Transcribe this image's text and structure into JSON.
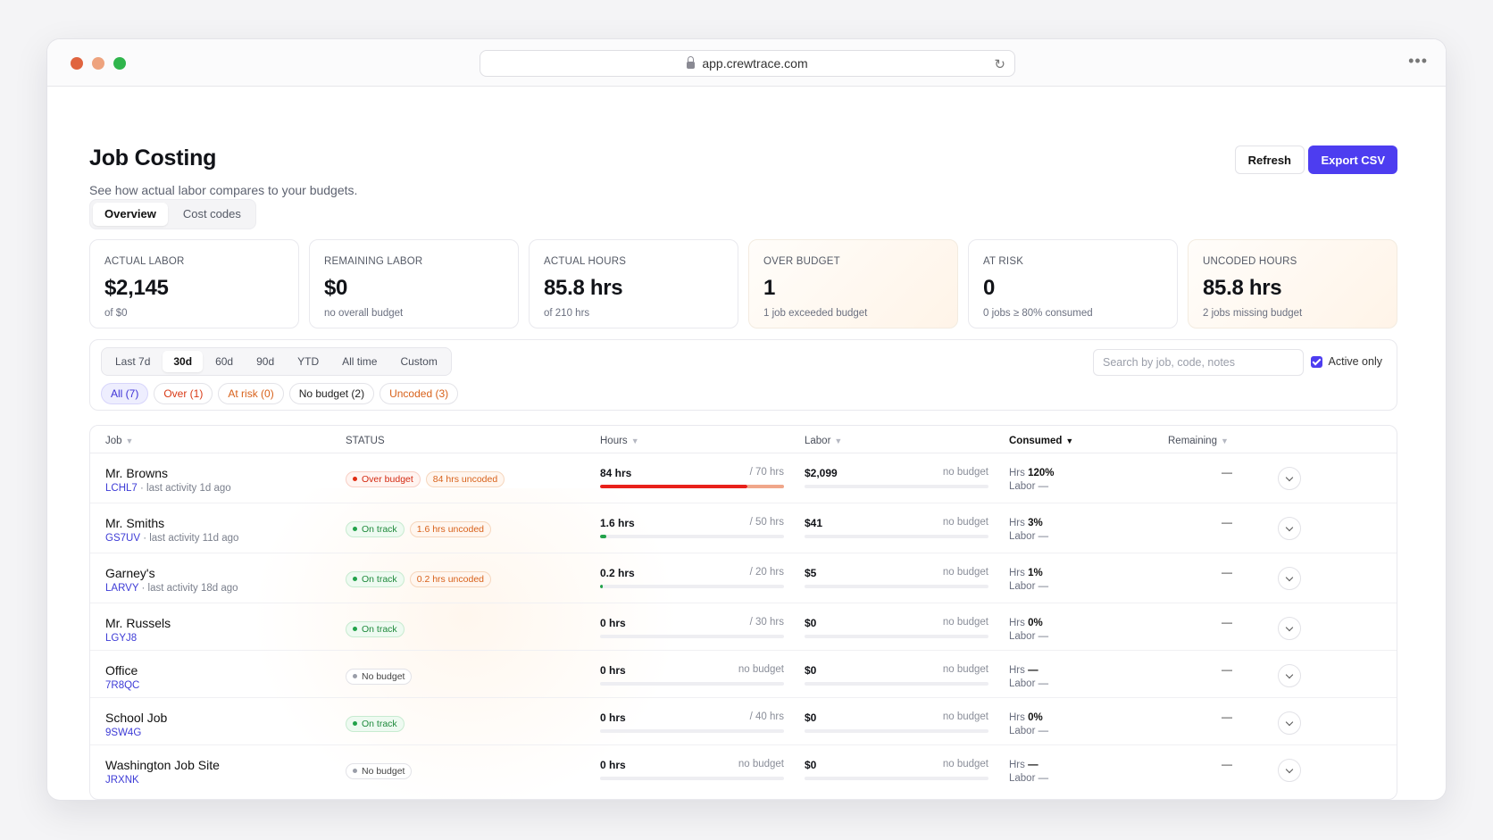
{
  "browser": {
    "url": "app.crewtrace.com"
  },
  "header": {
    "title": "Job Costing",
    "subtitle": "See how actual labor compares to your budgets.",
    "refresh_label": "Refresh",
    "export_label": "Export CSV"
  },
  "tabs": [
    {
      "label": "Overview",
      "active": true
    },
    {
      "label": "Cost codes",
      "active": false
    }
  ],
  "stats": [
    {
      "label": "ACTUAL LABOR",
      "value": "$2,145",
      "sub": "of $0"
    },
    {
      "label": "REMAINING LABOR",
      "value": "$0",
      "sub": "no overall budget"
    },
    {
      "label": "ACTUAL HOURS",
      "value": "85.8 hrs",
      "sub": "of 210 hrs"
    },
    {
      "label": "OVER BUDGET",
      "value": "1",
      "sub": "1 job exceeded budget"
    },
    {
      "label": "AT RISK",
      "value": "0",
      "sub": "0 jobs ≥ 80% consumed"
    },
    {
      "label": "UNCODED HOURS",
      "value": "85.8 hrs",
      "sub": "2 jobs missing budget"
    }
  ],
  "filters": {
    "ranges": [
      "Last 7d",
      "30d",
      "60d",
      "90d",
      "YTD",
      "All time",
      "Custom"
    ],
    "selected_range": "30d",
    "chips": [
      "All (7)",
      "Over (1)",
      "At risk (0)",
      "No budget (2)",
      "Uncoded (3)"
    ],
    "search_placeholder": "Search by job, code, notes",
    "active_only_label": "Active only",
    "active_only": true
  },
  "table": {
    "columns": {
      "job": "Job",
      "status": "STATUS",
      "hours": "Hours",
      "labor": "Labor",
      "consumed": "Consumed",
      "remaining": "Remaining"
    },
    "rows": [
      {
        "name": "Mr. Browns",
        "code": "LCHL7",
        "activity": "· last activity 1d ago",
        "status": "Over budget",
        "uncoded": "84 hrs uncoded",
        "hours": "84 hrs",
        "hours_budget": "/ 70 hrs",
        "hours_fill": 0.8,
        "hours_over": 0.2,
        "labor": "$2,099",
        "labor_budget": "no budget",
        "consumed_hrs": "120%",
        "consumed_labor": "—",
        "remaining": "—"
      },
      {
        "name": "Mr. Smiths",
        "code": "GS7UV",
        "activity": "· last activity 11d ago",
        "status": "On track",
        "uncoded": "1.6 hrs uncoded",
        "hours": "1.6 hrs",
        "hours_budget": "/ 50 hrs",
        "hours_fill": 0.032,
        "hours_over": 0,
        "labor": "$41",
        "labor_budget": "no budget",
        "consumed_hrs": "3%",
        "consumed_labor": "—",
        "remaining": "—"
      },
      {
        "name": "Garney's",
        "code": "LARVY",
        "activity": "· last activity 18d ago",
        "status": "On track",
        "uncoded": "0.2 hrs uncoded",
        "hours": "0.2 hrs",
        "hours_budget": "/ 20 hrs",
        "hours_fill": 0.01,
        "hours_over": 0,
        "labor": "$5",
        "labor_budget": "no budget",
        "consumed_hrs": "1%",
        "consumed_labor": "—",
        "remaining": "—"
      },
      {
        "name": "Mr. Russels",
        "code": "LGYJ8",
        "activity": "",
        "status": "On track",
        "uncoded": "",
        "hours": "0 hrs",
        "hours_budget": "/ 30 hrs",
        "hours_fill": 0,
        "hours_over": 0,
        "labor": "$0",
        "labor_budget": "no budget",
        "consumed_hrs": "0%",
        "consumed_labor": "—",
        "remaining": "—"
      },
      {
        "name": "Office",
        "code": "7R8QC",
        "activity": "",
        "status": "No budget",
        "uncoded": "",
        "hours": "0 hrs",
        "hours_budget": "no budget",
        "hours_fill": 0,
        "hours_over": 0,
        "labor": "$0",
        "labor_budget": "no budget",
        "consumed_hrs": "—",
        "consumed_labor": "—",
        "remaining": "—"
      },
      {
        "name": "School Job",
        "code": "9SW4G",
        "activity": "",
        "status": "On track",
        "uncoded": "",
        "hours": "0 hrs",
        "hours_budget": "/ 40 hrs",
        "hours_fill": 0,
        "hours_over": 0,
        "labor": "$0",
        "labor_budget": "no budget",
        "consumed_hrs": "0%",
        "consumed_labor": "—",
        "remaining": "—"
      },
      {
        "name": "Washington Job Site",
        "code": "JRXNK",
        "activity": "",
        "status": "No budget",
        "uncoded": "",
        "hours": "0 hrs",
        "hours_budget": "no budget",
        "hours_fill": 0,
        "hours_over": 0,
        "labor": "$0",
        "labor_budget": "no budget",
        "consumed_hrs": "—",
        "consumed_labor": "—",
        "remaining": "—"
      }
    ],
    "consumed_hrs_prefix": "Hrs",
    "consumed_labor_prefix": "Labor"
  },
  "colors": {
    "accent": "#4d3df0",
    "over": "#e8201a",
    "on_track": "#22a24a",
    "uncoded": "#d8611a"
  }
}
